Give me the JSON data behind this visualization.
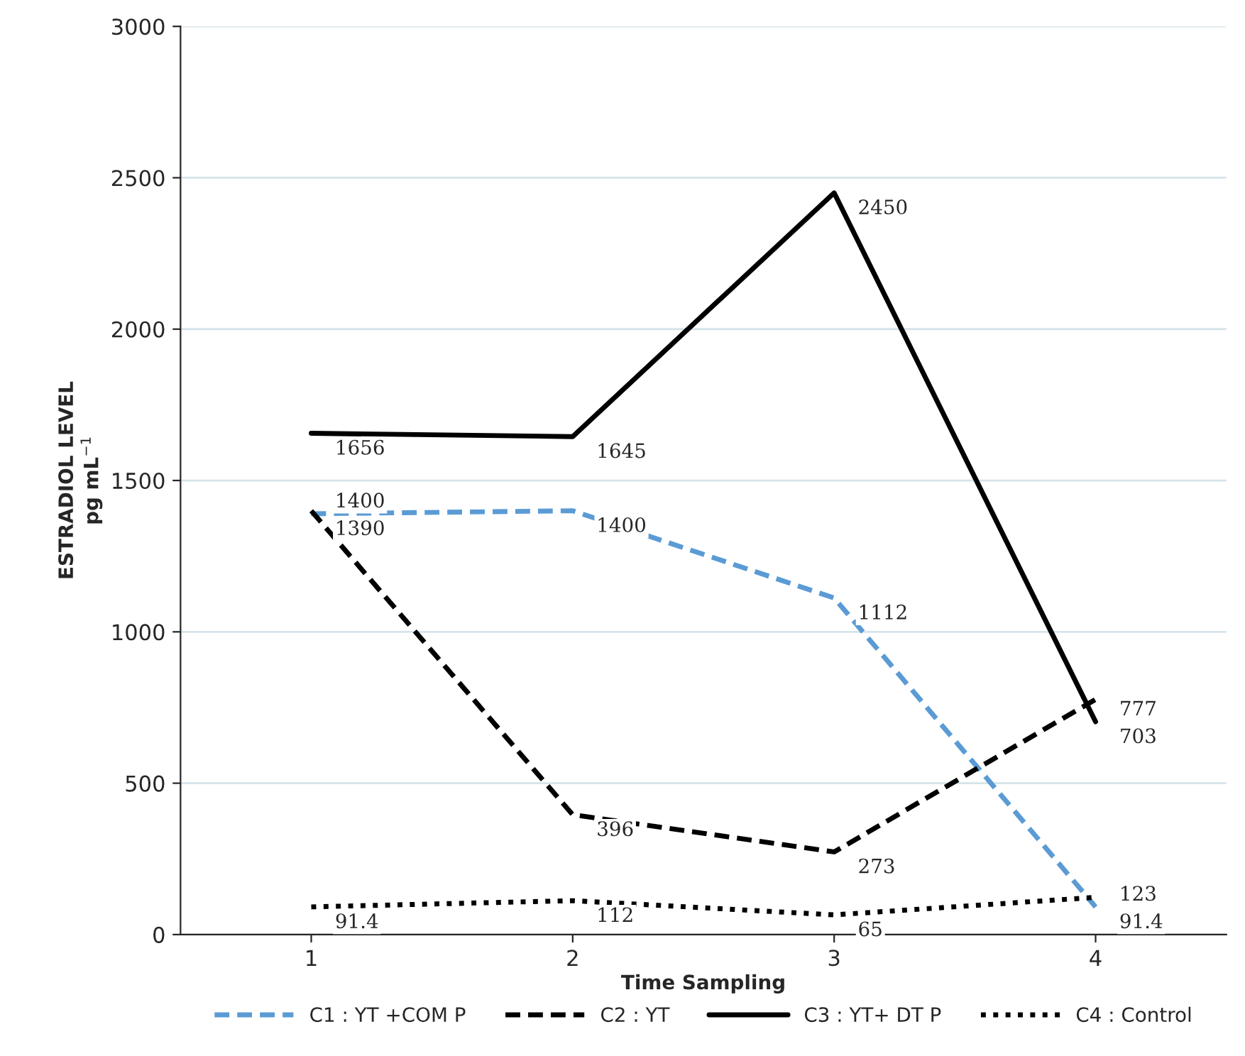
{
  "chart_data": {
    "type": "line",
    "xlabel": "Time Sampling",
    "ylabel": "ESTRADIOL LEVEL\npg mL$^{−1}$",
    "categories": [
      "1",
      "2",
      "3",
      "4"
    ],
    "series": [
      {
        "name": "C1 : YT +COM P",
        "color": "#5b9bd5",
        "line_style": "dashed",
        "values": [
          1390,
          1400,
          1112,
          91.4
        ]
      },
      {
        "name": "C2 : YT",
        "color": "#000000",
        "line_style": "dashed",
        "values": [
          1400,
          396,
          273,
          777
        ]
      },
      {
        "name": "C3 : YT+ DT P",
        "color": "#000000",
        "line_style": "solid",
        "values": [
          1656,
          1645,
          2450,
          703
        ]
      },
      {
        "name": "C4 : Control",
        "color": "#000000",
        "line_style": "dotted",
        "values": [
          91.4,
          112,
          65,
          123
        ]
      }
    ],
    "ylim": [
      0,
      3000
    ],
    "yticks": [
      0,
      500,
      1000,
      1500,
      2000,
      2500,
      3000
    ],
    "grid": "y",
    "legend": "bottom",
    "data_labels": true,
    "marker": "none"
  }
}
